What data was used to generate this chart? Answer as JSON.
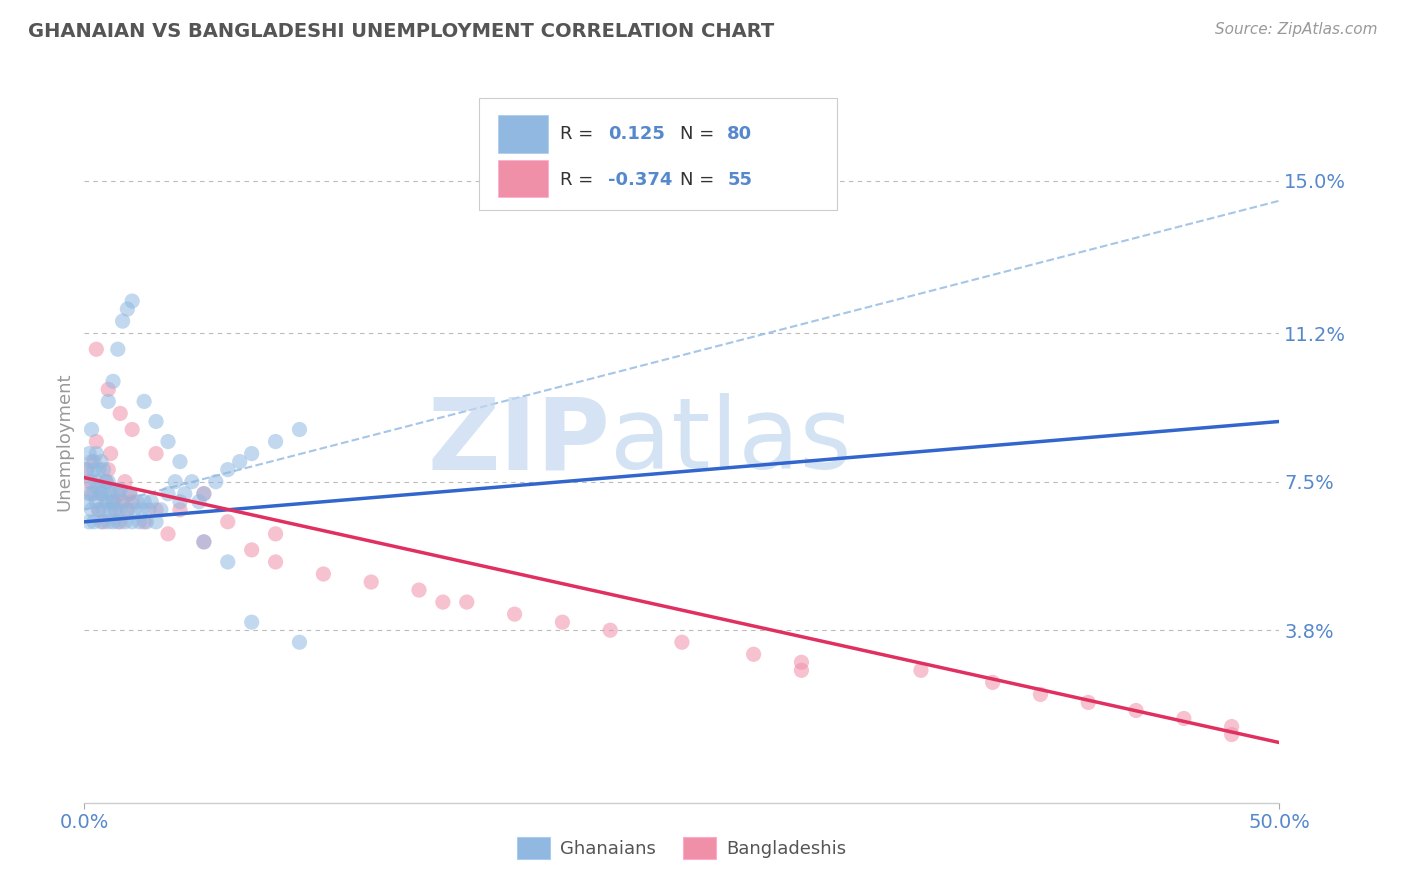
{
  "title": "GHANAIAN VS BANGLADESHI UNEMPLOYMENT CORRELATION CHART",
  "source_text": "Source: ZipAtlas.com",
  "ylabel": "Unemployment",
  "xlim": [
    0.0,
    0.5
  ],
  "ylim": [
    -0.005,
    0.175
  ],
  "yticks": [
    0.038,
    0.075,
    0.112,
    0.15
  ],
  "ytick_labels": [
    "3.8%",
    "7.5%",
    "11.2%",
    "15.0%"
  ],
  "xticks": [
    0.0,
    0.5
  ],
  "xtick_labels": [
    "0.0%",
    "50.0%"
  ],
  "ghanaian_color": "#90b8e0",
  "bangladeshi_color": "#f090a8",
  "trend_ghanaian_color": "#3366cc",
  "trend_bangladeshi_color": "#e03060",
  "dashed_line_color": "#90b8e0",
  "r_ghanaian": 0.125,
  "n_ghanaian": 80,
  "r_bangladeshi": -0.374,
  "n_bangladeshi": 55,
  "watermark": "ZIPatlas",
  "watermark_color": "#c8dff5",
  "background_color": "#ffffff",
  "grid_color": "#bbbbbb",
  "title_color": "#555555",
  "axis_label_color": "#5588cc",
  "trend_ghanaian": {
    "x_start": 0.0,
    "x_end": 0.5,
    "y_start": 0.065,
    "y_end": 0.09
  },
  "trend_bangladeshi": {
    "x_start": 0.0,
    "x_end": 0.5,
    "y_start": 0.076,
    "y_end": 0.01
  },
  "dashed_trend": {
    "x_start": 0.0,
    "x_end": 0.5,
    "y_start": 0.068,
    "y_end": 0.145
  },
  "ghanaian_x": [
    0.001,
    0.001,
    0.002,
    0.002,
    0.002,
    0.003,
    0.003,
    0.003,
    0.003,
    0.004,
    0.004,
    0.004,
    0.005,
    0.005,
    0.005,
    0.006,
    0.006,
    0.006,
    0.007,
    0.007,
    0.007,
    0.008,
    0.008,
    0.008,
    0.009,
    0.009,
    0.01,
    0.01,
    0.01,
    0.011,
    0.011,
    0.012,
    0.012,
    0.013,
    0.013,
    0.014,
    0.015,
    0.015,
    0.016,
    0.017,
    0.018,
    0.019,
    0.02,
    0.021,
    0.022,
    0.023,
    0.024,
    0.025,
    0.026,
    0.027,
    0.028,
    0.03,
    0.032,
    0.035,
    0.038,
    0.04,
    0.042,
    0.045,
    0.048,
    0.05,
    0.055,
    0.06,
    0.065,
    0.07,
    0.08,
    0.09,
    0.01,
    0.012,
    0.014,
    0.016,
    0.018,
    0.02,
    0.025,
    0.03,
    0.035,
    0.04,
    0.05,
    0.06,
    0.07,
    0.09
  ],
  "ghanaian_y": [
    0.07,
    0.078,
    0.065,
    0.072,
    0.082,
    0.068,
    0.075,
    0.08,
    0.088,
    0.072,
    0.078,
    0.065,
    0.07,
    0.075,
    0.082,
    0.068,
    0.073,
    0.078,
    0.065,
    0.072,
    0.08,
    0.068,
    0.073,
    0.078,
    0.07,
    0.075,
    0.065,
    0.07,
    0.075,
    0.068,
    0.072,
    0.065,
    0.07,
    0.068,
    0.073,
    0.065,
    0.068,
    0.073,
    0.07,
    0.065,
    0.068,
    0.072,
    0.065,
    0.068,
    0.07,
    0.065,
    0.068,
    0.07,
    0.065,
    0.068,
    0.07,
    0.065,
    0.068,
    0.072,
    0.075,
    0.07,
    0.072,
    0.075,
    0.07,
    0.072,
    0.075,
    0.078,
    0.08,
    0.082,
    0.085,
    0.088,
    0.095,
    0.1,
    0.108,
    0.115,
    0.118,
    0.12,
    0.095,
    0.09,
    0.085,
    0.08,
    0.06,
    0.055,
    0.04,
    0.035
  ],
  "bangladeshi_x": [
    0.001,
    0.002,
    0.003,
    0.004,
    0.005,
    0.006,
    0.007,
    0.008,
    0.009,
    0.01,
    0.011,
    0.012,
    0.013,
    0.014,
    0.015,
    0.016,
    0.017,
    0.018,
    0.019,
    0.02,
    0.025,
    0.03,
    0.035,
    0.04,
    0.05,
    0.06,
    0.07,
    0.08,
    0.1,
    0.12,
    0.14,
    0.16,
    0.18,
    0.2,
    0.22,
    0.25,
    0.28,
    0.3,
    0.35,
    0.38,
    0.4,
    0.42,
    0.44,
    0.46,
    0.48,
    0.005,
    0.01,
    0.015,
    0.02,
    0.03,
    0.05,
    0.08,
    0.15,
    0.3,
    0.48
  ],
  "bangladeshi_y": [
    0.078,
    0.075,
    0.072,
    0.08,
    0.085,
    0.068,
    0.072,
    0.065,
    0.075,
    0.078,
    0.082,
    0.07,
    0.068,
    0.072,
    0.065,
    0.07,
    0.075,
    0.068,
    0.072,
    0.07,
    0.065,
    0.068,
    0.062,
    0.068,
    0.06,
    0.065,
    0.058,
    0.055,
    0.052,
    0.05,
    0.048,
    0.045,
    0.042,
    0.04,
    0.038,
    0.035,
    0.032,
    0.03,
    0.028,
    0.025,
    0.022,
    0.02,
    0.018,
    0.016,
    0.014,
    0.108,
    0.098,
    0.092,
    0.088,
    0.082,
    0.072,
    0.062,
    0.045,
    0.028,
    0.012
  ]
}
